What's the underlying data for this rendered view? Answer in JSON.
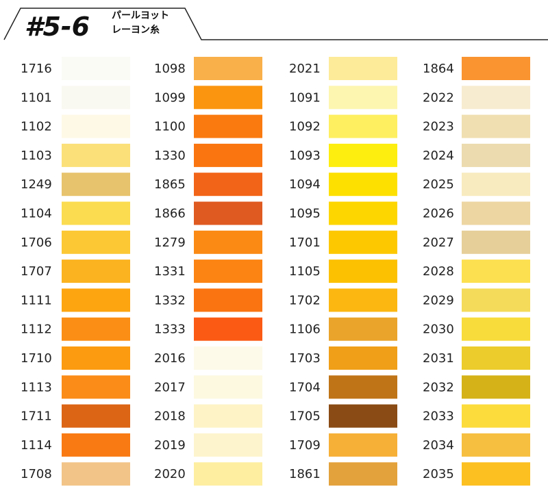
{
  "header": {
    "code": "#5-6",
    "line1": "パールヨット",
    "line2": "レーヨン糸"
  },
  "columns": [
    {
      "items": [
        {
          "code": "1716",
          "color": "#fbfbf5"
        },
        {
          "code": "1101",
          "color": "#faf9f1"
        },
        {
          "code": "1102",
          "color": "#fdf9e6"
        },
        {
          "code": "1103",
          "color": "#fbe07a"
        },
        {
          "code": "1249",
          "color": "#e8c36e"
        },
        {
          "code": "1104",
          "color": "#fbdc50"
        },
        {
          "code": "1706",
          "color": "#fcc935"
        },
        {
          "code": "1707",
          "color": "#fbb420"
        },
        {
          "code": "1111",
          "color": "#fca510"
        },
        {
          "code": "1112",
          "color": "#fb8f15"
        },
        {
          "code": "1710",
          "color": "#fc9a10"
        },
        {
          "code": "1113",
          "color": "#fb8c18"
        },
        {
          "code": "1711",
          "color": "#db6415"
        },
        {
          "code": "1114",
          "color": "#f97a12"
        },
        {
          "code": "1708",
          "color": "#f2c488"
        }
      ]
    },
    {
      "items": [
        {
          "code": "1098",
          "color": "#f9b04a"
        },
        {
          "code": "1099",
          "color": "#fb9510"
        },
        {
          "code": "1100",
          "color": "#fb7a10"
        },
        {
          "code": "1330",
          "color": "#fa7410"
        },
        {
          "code": "1865",
          "color": "#f26418"
        },
        {
          "code": "1866",
          "color": "#df5a20"
        },
        {
          "code": "1279",
          "color": "#fb8a14"
        },
        {
          "code": "1331",
          "color": "#fb8412"
        },
        {
          "code": "1332",
          "color": "#fa7412"
        },
        {
          "code": "1333",
          "color": "#fb5a14"
        },
        {
          "code": "2016",
          "color": "#fdfaea"
        },
        {
          "code": "2017",
          "color": "#fdf8e0"
        },
        {
          "code": "2018",
          "color": "#fdf3c6"
        },
        {
          "code": "2019",
          "color": "#fdf3cc"
        },
        {
          "code": "2020",
          "color": "#fdeea0"
        }
      ]
    },
    {
      "items": [
        {
          "code": "2021",
          "color": "#fdeb9a"
        },
        {
          "code": "1091",
          "color": "#fdf6b0"
        },
        {
          "code": "1092",
          "color": "#fdef60"
        },
        {
          "code": "1093",
          "color": "#fdee10"
        },
        {
          "code": "1094",
          "color": "#fde000"
        },
        {
          "code": "1095",
          "color": "#fdd600"
        },
        {
          "code": "1701",
          "color": "#fdc800"
        },
        {
          "code": "1105",
          "color": "#fcc100"
        },
        {
          "code": "1702",
          "color": "#fcb810"
        },
        {
          "code": "1106",
          "color": "#eaa42c"
        },
        {
          "code": "1703",
          "color": "#f0a018"
        },
        {
          "code": "1704",
          "color": "#c07418"
        },
        {
          "code": "1705",
          "color": "#8a4c14"
        },
        {
          "code": "1709",
          "color": "#f6b038"
        },
        {
          "code": "1861",
          "color": "#e4a23c"
        }
      ]
    },
    {
      "items": [
        {
          "code": "1864",
          "color": "#fa9430"
        },
        {
          "code": "2022",
          "color": "#f8ecd0"
        },
        {
          "code": "2023",
          "color": "#f0dfb0"
        },
        {
          "code": "2024",
          "color": "#ecdbae"
        },
        {
          "code": "2025",
          "color": "#f8ebc0"
        },
        {
          "code": "2026",
          "color": "#eed6a2"
        },
        {
          "code": "2027",
          "color": "#e6cf98"
        },
        {
          "code": "2028",
          "color": "#fde050"
        },
        {
          "code": "2029",
          "color": "#f4db5a"
        },
        {
          "code": "2030",
          "color": "#f8dc3c"
        },
        {
          "code": "2031",
          "color": "#eccb2c"
        },
        {
          "code": "2032",
          "color": "#d4b218"
        },
        {
          "code": "2033",
          "color": "#fcdc3c"
        },
        {
          "code": "2034",
          "color": "#f6bf40"
        },
        {
          "code": "2035",
          "color": "#fcc020"
        }
      ]
    }
  ]
}
